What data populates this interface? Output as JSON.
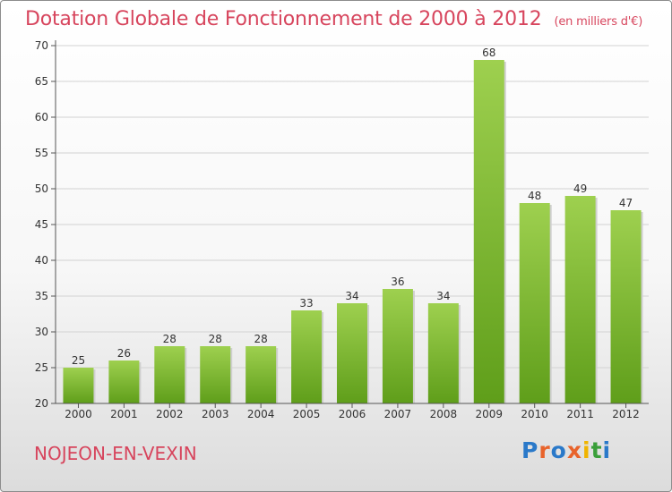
{
  "header": {
    "title": "Dotation Globale de Fonctionnement de 2000 à 2012",
    "subtitle": "(en milliers d'€)"
  },
  "footer": {
    "commune": "NOJEON-EN-VEXIN",
    "logo": "Proxiti"
  },
  "colors": {
    "title": "#d7455d",
    "bar_top": "#9ed04f",
    "bar_bottom": "#5f9e1a"
  },
  "chart_data": {
    "type": "bar",
    "title": "Dotation Globale de Fonctionnement de 2000 à 2012",
    "subtitle": "(en milliers d'€)",
    "categories": [
      "2000",
      "2001",
      "2002",
      "2003",
      "2004",
      "2005",
      "2006",
      "2007",
      "2008",
      "2009",
      "2010",
      "2011",
      "2012"
    ],
    "values": [
      25,
      26,
      28,
      28,
      28,
      33,
      34,
      36,
      34,
      68,
      48,
      49,
      47
    ],
    "xlabel": "",
    "ylabel": "",
    "ylim": [
      20,
      70
    ],
    "yticks": [
      20,
      25,
      30,
      35,
      40,
      45,
      50,
      55,
      60,
      65,
      70
    ],
    "grid": true,
    "legend": "none"
  }
}
